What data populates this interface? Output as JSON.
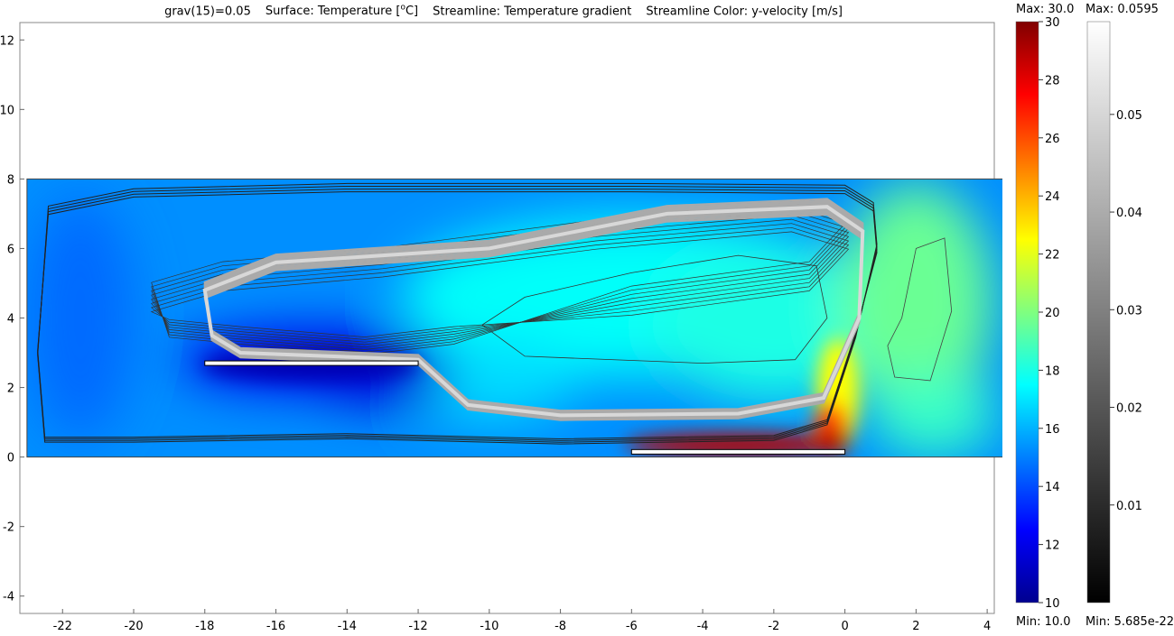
{
  "chart_data": {
    "type": "heatmap",
    "title_parts": [
      "grav(15)=0.05",
      "Surface: Temperature [",
      "o",
      "C]",
      "Streamline: Temperature gradient",
      "Streamline Color: y-velocity [m/s]"
    ],
    "xlim": [
      -23.2,
      4.2
    ],
    "ylim": [
      -4.5,
      12.5
    ],
    "x_ticks": [
      -22,
      -20,
      -18,
      -16,
      -14,
      -12,
      -10,
      -8,
      -6,
      -4,
      -2,
      0,
      2,
      4
    ],
    "y_ticks": [
      -4,
      -2,
      0,
      2,
      4,
      6,
      8,
      10,
      12
    ],
    "domain": {
      "x": [
        -23,
        4.5
      ],
      "y": [
        0,
        8
      ]
    },
    "cold_plate": {
      "x": [
        -18,
        -12
      ],
      "y": 2.7
    },
    "hot_plate": {
      "x": [
        -6,
        0
      ],
      "y": 0.15
    },
    "temperature_scale": {
      "label_max": "Max: 30.0",
      "label_min": "Min: 10.0",
      "min": 10,
      "max": 30,
      "ticks": [
        10,
        12,
        14,
        16,
        18,
        20,
        22,
        24,
        26,
        28,
        30
      ]
    },
    "velocity_scale": {
      "label_max": "Max: 0.0595",
      "label_min": "Min: 5.685e-22",
      "min": 0,
      "max": 0.0595,
      "ticks": [
        0.01,
        0.02,
        0.03,
        0.04,
        0.05
      ]
    }
  },
  "colors": {
    "background": "#ffffff",
    "cold": "#0000a0",
    "warm": "#00e0ff",
    "hot": "#c00000"
  }
}
